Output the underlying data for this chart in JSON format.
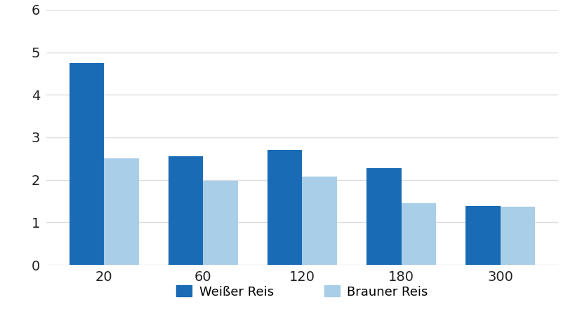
{
  "categories": [
    20,
    60,
    120,
    180,
    300
  ],
  "weisser_reis": [
    4.75,
    2.55,
    2.7,
    2.28,
    1.38
  ],
  "brauner_reis": [
    2.5,
    1.97,
    2.07,
    1.45,
    1.37
  ],
  "weisser_color": "#1A6BB5",
  "brauner_color": "#A8CEE8",
  "background_color": "#ffffff",
  "ylim": [
    0,
    6
  ],
  "yticks": [
    0,
    1,
    2,
    3,
    4,
    5,
    6
  ],
  "legend_labels": [
    "Weißer Reis",
    "Brauner Reis"
  ],
  "bar_width": 0.35,
  "tick_fontsize": 14,
  "legend_fontsize": 13,
  "grid_color": "#dddddd"
}
